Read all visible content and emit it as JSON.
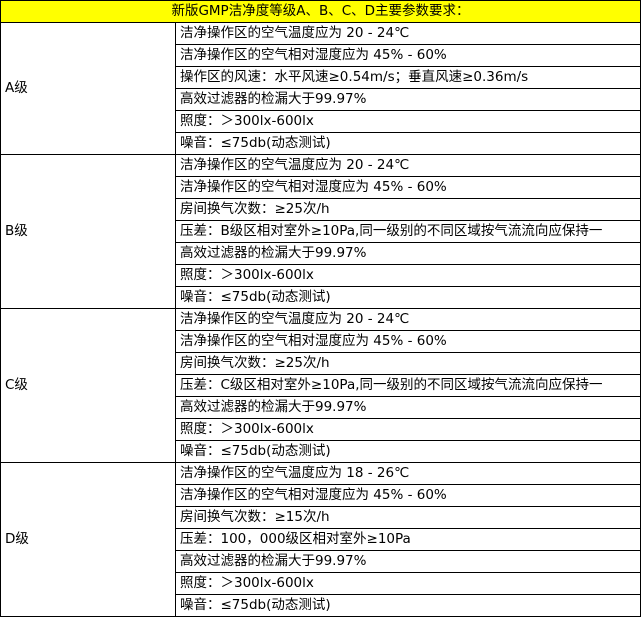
{
  "title": "新版GMP洁净度等级A、B、C、D主要参数要求：",
  "colors": {
    "header_bg": "#ffff00"
  },
  "grades": [
    {
      "label": "A级",
      "items": [
        "洁净操作区的空气温度应为 20 - 24℃",
        "洁净操作区的空气相对湿度应为 45% - 60%",
        "操作区的风速：水平风速≥0.54m/s；垂直风速≥0.36m/s",
        "高效过滤器的检漏大于99.97%",
        "照度：＞300lx-600lx",
        "噪音：≤75db(动态测试)"
      ]
    },
    {
      "label": "B级",
      "items": [
        "洁净操作区的空气温度应为 20 - 24℃",
        "洁净操作区的空气相对湿度应为 45% - 60%",
        "房间换气次数：≥25次/h",
        "压差：B级区相对室外≥10Pa,同一级别的不同区域按气流流向应保持一",
        "高效过滤器的检漏大于99.97%",
        "照度：＞300lx-600lx",
        "噪音：≤75db(动态测试)"
      ]
    },
    {
      "label": "C级",
      "items": [
        "洁净操作区的空气温度应为 20 - 24℃",
        "洁净操作区的空气相对湿度应为 45% - 60%",
        "房间换气次数：≥25次/h",
        "压差：C级区相对室外≥10Pa,同一级别的不同区域按气流流向应保持一",
        "高效过滤器的检漏大于99.97%",
        "照度：＞300lx-600lx",
        "噪音：≤75db(动态测试)"
      ]
    },
    {
      "label": "D级",
      "items": [
        "洁净操作区的空气温度应为 18 - 26℃",
        "洁净操作区的空气相对湿度应为 45% - 60%",
        "房间换气次数：≥15次/h",
        "压差：100，000级区相对室外≥10Pa",
        "高效过滤器的检漏大于99.97%",
        "照度：＞300lx-600lx",
        "噪音：≤75db(动态测试)"
      ]
    }
  ]
}
